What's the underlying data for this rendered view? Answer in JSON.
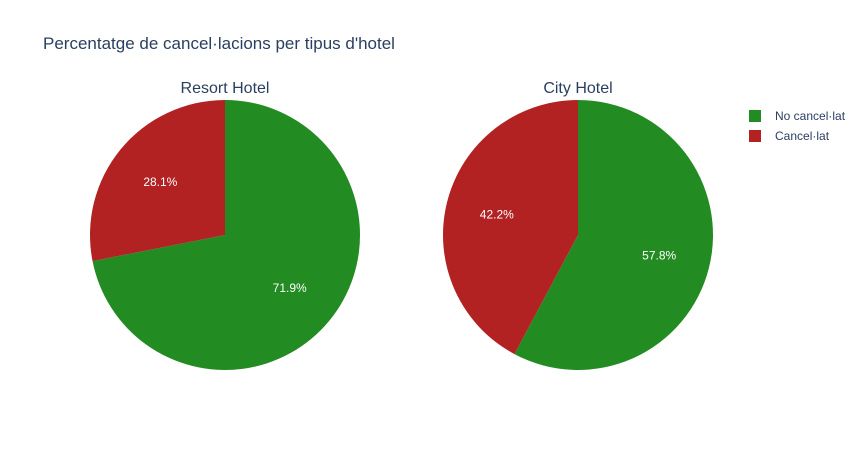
{
  "chart_data": {
    "type": "pie",
    "title": "Percentatge de cancel·lacions per tipus d'hotel",
    "legend": {
      "position": "top-right",
      "entries": [
        {
          "label": "No cancel·lat",
          "color": "#228b22"
        },
        {
          "label": "Cancel·lat",
          "color": "#b22222"
        }
      ]
    },
    "pies": [
      {
        "title": "Resort Hotel",
        "slices": [
          {
            "label": "No cancel·lat",
            "value": 71.9,
            "display": "71.9%",
            "color": "#228b22"
          },
          {
            "label": "Cancel·lat",
            "value": 28.1,
            "display": "28.1%",
            "color": "#b22222"
          }
        ]
      },
      {
        "title": "City Hotel",
        "slices": [
          {
            "label": "No cancel·lat",
            "value": 57.8,
            "display": "57.8%",
            "color": "#228b22"
          },
          {
            "label": "Cancel·lat",
            "value": 42.2,
            "display": "42.2%",
            "color": "#b22222"
          }
        ]
      }
    ]
  }
}
